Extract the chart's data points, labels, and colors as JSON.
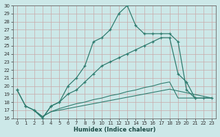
{
  "xlabel": "Humidex (Indice chaleur)",
  "bg_color": "#cce8e8",
  "grid_color": "#b8d8d8",
  "line_color": "#2e7b6e",
  "xlim": [
    -0.5,
    23.5
  ],
  "ylim": [
    16,
    30
  ],
  "xticks": [
    0,
    1,
    2,
    3,
    4,
    5,
    6,
    7,
    8,
    9,
    10,
    11,
    12,
    13,
    14,
    15,
    16,
    17,
    18,
    19,
    20,
    21,
    22,
    23
  ],
  "yticks": [
    16,
    17,
    18,
    19,
    20,
    21,
    22,
    23,
    24,
    25,
    26,
    27,
    28,
    29,
    30
  ],
  "series1_x": [
    0,
    1,
    2,
    3,
    4,
    5,
    6,
    7,
    8,
    9,
    10,
    11,
    12,
    13,
    14,
    15,
    16,
    17,
    18,
    19,
    20,
    21
  ],
  "series1_y": [
    19.5,
    17.5,
    17.0,
    16.0,
    17.5,
    18.0,
    20.0,
    21.0,
    22.5,
    25.5,
    26.0,
    27.0,
    29.0,
    30.0,
    27.5,
    26.5,
    26.5,
    26.5,
    26.5,
    25.5,
    19.5,
    18.5
  ],
  "series2_x": [
    0,
    1,
    2,
    3,
    4,
    5,
    6,
    7,
    8,
    9,
    10,
    11,
    12,
    13,
    14,
    15,
    16,
    17,
    18,
    19,
    20,
    21,
    22,
    23
  ],
  "series2_y": [
    19.5,
    17.5,
    17.0,
    16.0,
    17.5,
    18.0,
    19.0,
    19.5,
    20.5,
    21.5,
    22.5,
    23.0,
    23.5,
    24.0,
    24.5,
    25.0,
    25.5,
    26.0,
    26.0,
    21.5,
    20.5,
    18.5,
    18.5,
    18.5
  ],
  "series3_x": [
    2,
    3,
    4,
    5,
    6,
    7,
    8,
    9,
    10,
    11,
    12,
    13,
    14,
    15,
    16,
    17,
    18,
    19,
    20,
    21,
    22,
    23
  ],
  "series3_y": [
    17.0,
    16.2,
    16.8,
    17.2,
    17.5,
    17.8,
    18.0,
    18.3,
    18.5,
    18.8,
    19.0,
    19.3,
    19.5,
    19.8,
    20.0,
    20.3,
    20.5,
    18.5,
    18.5,
    18.5,
    18.5,
    18.5
  ],
  "series4_x": [
    2,
    3,
    4,
    5,
    6,
    7,
    8,
    9,
    10,
    11,
    12,
    13,
    14,
    15,
    16,
    17,
    18,
    23
  ],
  "series4_y": [
    17.0,
    16.2,
    16.8,
    17.0,
    17.2,
    17.4,
    17.6,
    17.8,
    18.0,
    18.2,
    18.4,
    18.6,
    18.8,
    19.0,
    19.2,
    19.4,
    19.6,
    18.5
  ]
}
